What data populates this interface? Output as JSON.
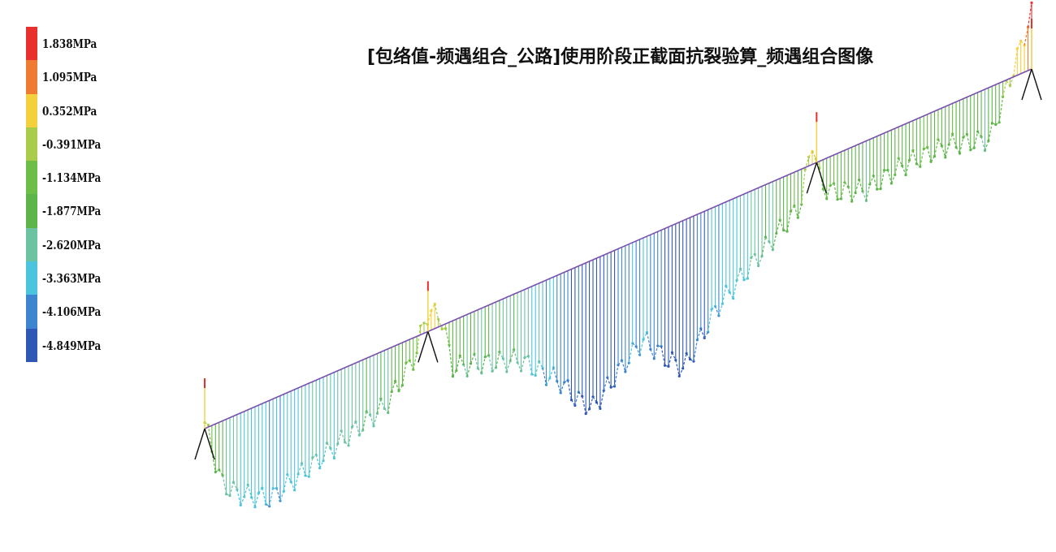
{
  "title": "[包络值-频遇组合_公路]使用阶段正截面抗裂验算_频遇组合图像",
  "legend": {
    "unit": "MPa",
    "items": [
      {
        "label": "1.838MPa",
        "value": 1.838,
        "color": "#e8302c"
      },
      {
        "label": "1.095MPa",
        "value": 1.095,
        "color": "#ef7b32"
      },
      {
        "label": "0.352MPa",
        "value": 0.352,
        "color": "#f3d03c"
      },
      {
        "label": "-0.391MPa",
        "value": -0.391,
        "color": "#a9cc4b"
      },
      {
        "label": "-1.134MPa",
        "value": -1.134,
        "color": "#6cbe46"
      },
      {
        "label": "-1.877MPa",
        "value": -1.877,
        "color": "#5db54a"
      },
      {
        "label": "-2.620MPa",
        "value": -2.62,
        "color": "#6cc3a2"
      },
      {
        "label": "-3.363MPa",
        "value": -3.363,
        "color": "#4bc5dd"
      },
      {
        "label": "-4.106MPa",
        "value": -4.106,
        "color": "#3d85cf"
      },
      {
        "label": "-4.849MPa",
        "value": -4.849,
        "color": "#2f58b6"
      }
    ]
  },
  "stress_profile": {
    "unit": "MPa",
    "station": [
      0.0,
      0.02,
      0.04,
      0.08,
      0.15,
      0.22,
      0.255,
      0.268,
      0.285,
      0.3,
      0.38,
      0.43,
      0.45,
      0.47,
      0.5,
      0.53,
      0.56,
      0.58,
      0.62,
      0.68,
      0.72,
      0.735,
      0.745,
      0.76,
      0.8,
      0.85,
      0.9,
      0.95,
      0.98,
      1.0
    ],
    "stress": [
      0.2,
      -2.0,
      -2.6,
      -3.2,
      -2.5,
      -1.8,
      -0.6,
      0.6,
      0.4,
      -1.5,
      -2.2,
      -3.5,
      -4.3,
      -4.8,
      -4.0,
      -3.3,
      -4.3,
      -4.8,
      -3.3,
      -2.0,
      -1.2,
      0.8,
      -0.8,
      -1.2,
      -1.6,
      -1.3,
      -1.3,
      -1.7,
      0.4,
      1.8
    ]
  }
}
